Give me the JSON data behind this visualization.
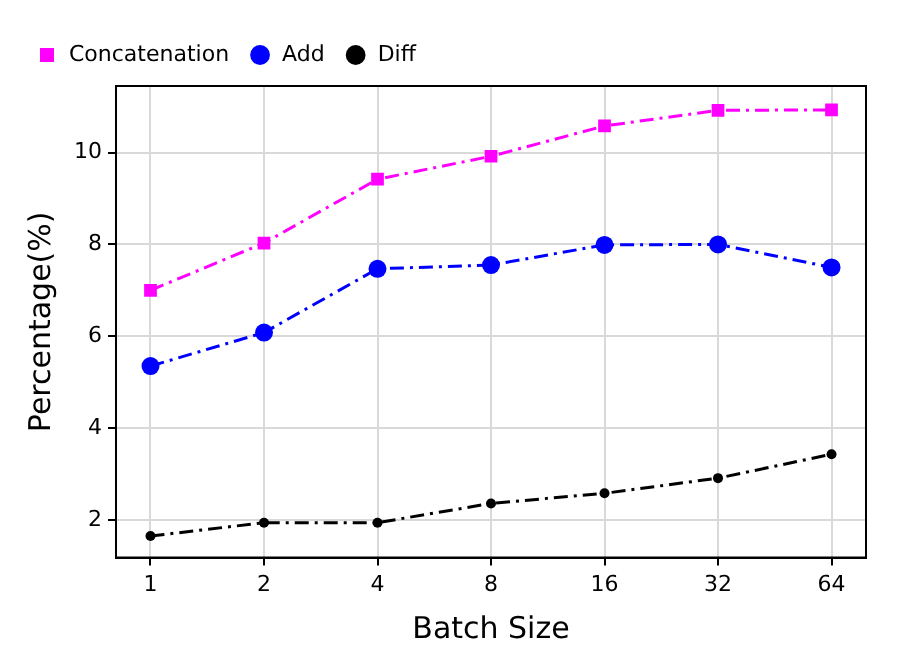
{
  "chart_data": {
    "type": "line",
    "xlabel": "Batch Size",
    "ylabel": "Percentage(%)",
    "x": [
      1,
      2,
      4,
      8,
      16,
      32,
      64
    ],
    "log": "x",
    "xlim": [
      0.81,
      79
    ],
    "xticks": [
      1,
      2,
      4,
      8,
      16,
      32,
      64
    ],
    "ylim": [
      1.18,
      11.45
    ],
    "yticks": [
      2,
      4,
      6,
      8,
      10
    ],
    "grid": true,
    "legend": "top left",
    "line_style": "dashed",
    "series": [
      {
        "name": "Concatenation",
        "color": "#ff00ff",
        "marker": "square",
        "values": [
          7.0,
          8.03,
          9.42,
          9.92,
          10.58,
          10.92,
          10.93
        ]
      },
      {
        "name": "Add",
        "color": "#0000ff",
        "marker": "circle",
        "values": [
          5.35,
          6.08,
          7.47,
          7.55,
          7.99,
          8.0,
          7.5
        ]
      },
      {
        "name": "Diff",
        "color": "#000000",
        "marker": "circle",
        "values": [
          1.65,
          1.94,
          1.94,
          2.36,
          2.58,
          2.91,
          3.43
        ]
      }
    ]
  }
}
